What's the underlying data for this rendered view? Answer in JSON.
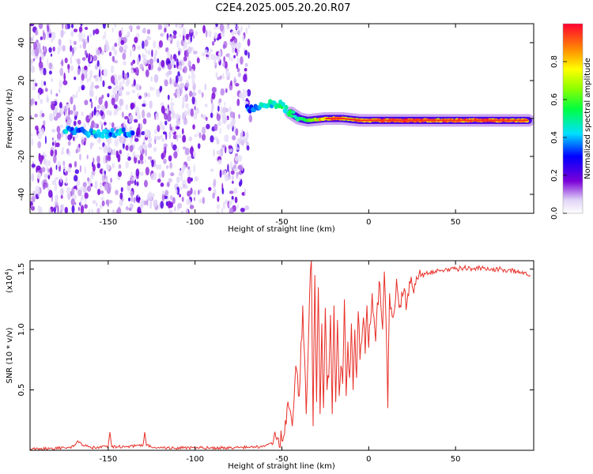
{
  "title": "C2E4.2025.005.20.20.R07",
  "chart_data": [
    {
      "type": "heatmap",
      "xlabel": "Height of straight line (km)",
      "ylabel": "Frequency (Hz)",
      "xlim": [
        -195,
        95
      ],
      "ylim": [
        -50,
        50
      ],
      "xticks": [
        -150,
        -100,
        -50,
        0,
        50
      ],
      "yticks": [
        -40,
        -20,
        0,
        20,
        40
      ],
      "colorbar": {
        "label": "Normalized spectral amplitude",
        "range": [
          0,
          1
        ],
        "ticks": [
          "0.0",
          "0.2",
          "0.4",
          "0.6",
          "0.8"
        ],
        "colormap": "rainbow (white-violet-blue-cyan-green-yellow-red)"
      },
      "ridge": [
        {
          "x": -175,
          "y": -6,
          "amp": 0.45
        },
        {
          "x": -165,
          "y": -7,
          "amp": 0.35
        },
        {
          "x": -158,
          "y": -8,
          "amp": 0.45
        },
        {
          "x": -150,
          "y": -8,
          "amp": 0.4
        },
        {
          "x": -142,
          "y": -7,
          "amp": 0.45
        },
        {
          "x": -135,
          "y": -8,
          "amp": 0.35
        },
        {
          "x": -70,
          "y": 5,
          "amp": 0.35
        },
        {
          "x": -62,
          "y": 7,
          "amp": 0.45
        },
        {
          "x": -55,
          "y": 8,
          "amp": 0.5
        },
        {
          "x": -50,
          "y": 7,
          "amp": 0.55
        },
        {
          "x": -45,
          "y": 3,
          "amp": 0.55
        },
        {
          "x": -40,
          "y": 0,
          "amp": 0.55
        },
        {
          "x": -35,
          "y": -1,
          "amp": 0.7
        },
        {
          "x": -25,
          "y": 0,
          "amp": 0.9
        },
        {
          "x": -15,
          "y": 0,
          "amp": 0.9
        },
        {
          "x": -5,
          "y": -1,
          "amp": 0.85
        },
        {
          "x": 5,
          "y": -1,
          "amp": 0.9
        },
        {
          "x": 20,
          "y": -1,
          "amp": 0.95
        },
        {
          "x": 40,
          "y": -1,
          "amp": 0.95
        },
        {
          "x": 60,
          "y": -1,
          "amp": 0.95
        },
        {
          "x": 80,
          "y": -1,
          "amp": 0.95
        },
        {
          "x": 92,
          "y": -1,
          "amp": 0.9
        }
      ]
    },
    {
      "type": "line",
      "xlabel": "Height of straight line (km)",
      "ylabel": "SNR (10 * v/v)",
      "yscale_label": "(x10",
      "yscale_exp": "4",
      "xlim": [
        -195,
        95
      ],
      "ylim": [
        0,
        1.57
      ],
      "xticks": [
        -150,
        -100,
        -50,
        0,
        50
      ],
      "yticks": [
        "0.5",
        "1.0",
        "1.5"
      ],
      "color": "#e8312a",
      "x": [
        -195,
        -175,
        -170,
        -168,
        -160,
        -150,
        -149,
        -148,
        -140,
        -130,
        -129,
        -128,
        -120,
        -100,
        -80,
        -60,
        -55,
        -52,
        -50,
        -48,
        -46,
        -44,
        -42,
        -40,
        -38,
        -36,
        -34,
        -33,
        -32,
        -31,
        -30,
        -29,
        -28,
        -27,
        -26,
        -25,
        -24,
        -23,
        -22,
        -21,
        -20,
        -19,
        -18,
        -17,
        -16,
        -15,
        -14,
        -13,
        -12,
        -11,
        -10,
        -9,
        -8,
        -7,
        -6,
        -5,
        -4,
        -3,
        -2,
        -1,
        0,
        2,
        4,
        6,
        8,
        9,
        10,
        11,
        12,
        14,
        16,
        18,
        20,
        22,
        24,
        26,
        28,
        30,
        35,
        40,
        45,
        50,
        55,
        60,
        65,
        70,
        75,
        80,
        85,
        90,
        93
      ],
      "y": [
        0.01,
        0.02,
        0.03,
        0.07,
        0.02,
        0.03,
        0.15,
        0.03,
        0.03,
        0.04,
        0.15,
        0.04,
        0.02,
        0.02,
        0.02,
        0.03,
        0.06,
        0.1,
        0.08,
        0.25,
        0.35,
        0.2,
        0.7,
        0.45,
        1.2,
        0.3,
        1.3,
        1.57,
        0.2,
        1.45,
        0.4,
        1.35,
        0.3,
        1.05,
        0.35,
        1.18,
        0.5,
        0.6,
        1.12,
        0.3,
        1.2,
        0.4,
        1.08,
        0.45,
        0.7,
        0.55,
        1.25,
        0.45,
        0.9,
        0.6,
        1.05,
        0.5,
        1.0,
        0.6,
        1.15,
        0.75,
        0.9,
        1.1,
        0.8,
        1.2,
        0.85,
        1.3,
        0.9,
        1.4,
        1.0,
        1.48,
        1.05,
        0.35,
        1.3,
        1.1,
        1.42,
        1.2,
        1.3,
        1.22,
        1.38,
        1.3,
        1.42,
        1.44,
        1.47,
        1.49,
        1.5,
        1.5,
        1.51,
        1.5,
        1.51,
        1.49,
        1.5,
        1.49,
        1.48,
        1.47,
        1.45
      ]
    }
  ]
}
